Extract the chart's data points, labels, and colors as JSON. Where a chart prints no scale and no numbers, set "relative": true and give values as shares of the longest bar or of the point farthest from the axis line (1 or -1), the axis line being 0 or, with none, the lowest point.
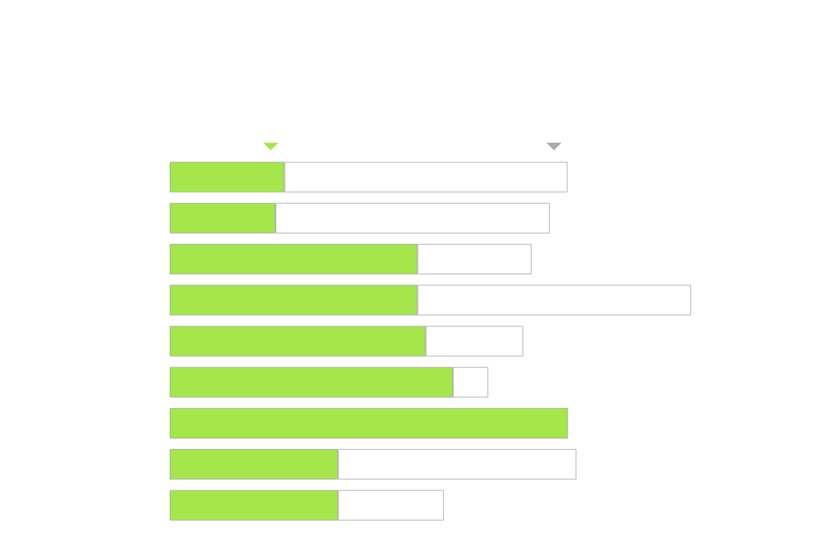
{
  "chart_data": {
    "type": "bar",
    "orientation": "horizontal",
    "stacked": true,
    "relative": true,
    "tick_labels": false,
    "categories": [
      null,
      null,
      null,
      null,
      null,
      null,
      null,
      null,
      null
    ],
    "series": [
      {
        "color": "#a5e64b",
        "values": [
          0.22,
          0.203,
          0.475,
          0.475,
          0.491,
          0.543,
          0.764,
          0.323,
          0.323
        ]
      },
      {
        "color": "#ffffff",
        "values": [
          0.543,
          0.526,
          0.219,
          0.525,
          0.187,
          0.068,
          0,
          0.457,
          0.203
        ]
      }
    ]
  }
}
